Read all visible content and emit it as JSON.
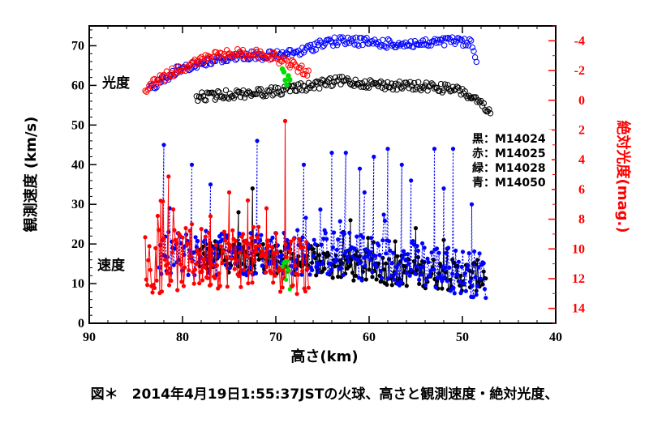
{
  "chart_data": {
    "type": "scatter",
    "title": "",
    "xlabel": "高さ(km)",
    "ylabel_left": "観測速度 (km/s)",
    "ylabel_right": "絶対光度(mag.)",
    "xlim": [
      90,
      40
    ],
    "ylim_left": [
      0,
      75
    ],
    "ylim_right": [
      15,
      -5
    ],
    "x_ticks": [
      "90",
      "80",
      "70",
      "60",
      "50",
      "40"
    ],
    "y_left_ticks": [
      "0",
      "10",
      "20",
      "30",
      "40",
      "50",
      "60",
      "70"
    ],
    "y_right_ticks": [
      "-4",
      "-2",
      "0",
      "2",
      "4",
      "6",
      "8",
      "10",
      "12",
      "14"
    ],
    "grid": false,
    "annotations": {
      "magnitude_group": "光度",
      "velocity_group": "速度"
    },
    "legend": {
      "position": "right",
      "entries": [
        "黒：M14024",
        "赤：M14025",
        "緑：M14028",
        "青：M14050"
      ]
    },
    "colors": {
      "black": "#000000",
      "red": "#ff0000",
      "green": "#00dd00",
      "blue": "#0000ff"
    },
    "series": [
      {
        "name": "M14024",
        "color_key": "black",
        "velocity": {
          "x_range": [
            78.5,
            47.5
          ],
          "base": [
            [
              78.5,
              17
            ],
            [
              70,
              16.5
            ],
            [
              60,
              14
            ],
            [
              50,
              12
            ],
            [
              47.5,
              12
            ]
          ],
          "spread": 4,
          "spikes": [
            [
              72.5,
              34
            ],
            [
              74,
              28
            ],
            [
              62,
              26
            ],
            [
              55,
              24
            ],
            [
              52,
              21
            ]
          ]
        },
        "magnitude": {
          "x_range": [
            78.5,
            47.0
          ],
          "points": [
            [
              78.5,
              -0.2
            ],
            [
              75,
              -0.4
            ],
            [
              70,
              -0.6
            ],
            [
              66,
              -1.0
            ],
            [
              63,
              -1.3
            ],
            [
              58,
              -1.0
            ],
            [
              53,
              -0.9
            ],
            [
              50,
              -0.6
            ],
            [
              48,
              0.3
            ],
            [
              47,
              1.0
            ]
          ]
        }
      },
      {
        "name": "M14025",
        "color_key": "red",
        "velocity": {
          "x_range": [
            84,
            66.5
          ],
          "base": [
            [
              84,
              15
            ],
            [
              80,
              16
            ],
            [
              75,
              17
            ],
            [
              70,
              16
            ],
            [
              66.5,
              15
            ]
          ],
          "spread": 8,
          "spikes": [
            [
              69,
              51
            ],
            [
              81.5,
              37
            ],
            [
              75,
              33
            ],
            [
              73,
              31
            ],
            [
              71,
              29
            ],
            [
              77,
              27
            ],
            [
              79,
              25
            ]
          ]
        },
        "magnitude": {
          "x_range": [
            84,
            66.5
          ],
          "points": [
            [
              84,
              -0.8
            ],
            [
              82,
              -1.6
            ],
            [
              80,
              -2.2
            ],
            [
              77,
              -2.9
            ],
            [
              74,
              -3.2
            ],
            [
              71,
              -3.1
            ],
            [
              69,
              -2.6
            ],
            [
              67,
              -2.0
            ],
            [
              66.5,
              -1.8
            ]
          ]
        }
      },
      {
        "name": "M14028",
        "color_key": "green",
        "velocity": {
          "x_range": [
            69.3,
            68.5
          ],
          "base": [
            [
              69.3,
              15
            ],
            [
              68.5,
              10
            ]
          ],
          "spread": 3,
          "spikes": []
        },
        "magnitude": {
          "x_range": [
            69.3,
            68.5
          ],
          "points": [
            [
              69.3,
              -1.8
            ],
            [
              68.8,
              -1.3
            ],
            [
              68.5,
              -1.5
            ]
          ]
        }
      },
      {
        "name": "M14050",
        "color_key": "blue",
        "velocity": {
          "x_range": [
            82.5,
            47.5
          ],
          "base": [
            [
              82.5,
              17
            ],
            [
              75,
              18
            ],
            [
              65,
              18
            ],
            [
              55,
              15
            ],
            [
              47.5,
              12
            ]
          ],
          "spread": 6,
          "spikes": [
            [
              82,
              45
            ],
            [
              72,
              46
            ],
            [
              64,
              43
            ],
            [
              62.5,
              43
            ],
            [
              59.5,
              42
            ],
            [
              58,
              44
            ],
            [
              56.5,
              40
            ],
            [
              53,
              44
            ],
            [
              51,
              44
            ],
            [
              61,
              39
            ],
            [
              67,
              40
            ],
            [
              55.5,
              36
            ],
            [
              52,
              34
            ],
            [
              49,
              30
            ],
            [
              79,
              40
            ],
            [
              77,
              35
            ],
            [
              60.5,
              33
            ]
          ]
        },
        "magnitude": {
          "x_range": [
            83.5,
            48.5
          ],
          "points": [
            [
              83.5,
              -0.8
            ],
            [
              82,
              -1.5
            ],
            [
              80,
              -2.2
            ],
            [
              77,
              -2.6
            ],
            [
              74,
              -3.0
            ],
            [
              70,
              -3.0
            ],
            [
              67,
              -3.3
            ],
            [
              65,
              -3.9
            ],
            [
              62,
              -4.0
            ],
            [
              58,
              -3.8
            ],
            [
              54,
              -3.8
            ],
            [
              51,
              -4.0
            ],
            [
              49,
              -3.8
            ],
            [
              48.5,
              -2.5
            ]
          ]
        }
      }
    ]
  },
  "caption": "図＊　2014年4月19日1:55:37JSTの火球、高さと観測速度・絶対光度、"
}
